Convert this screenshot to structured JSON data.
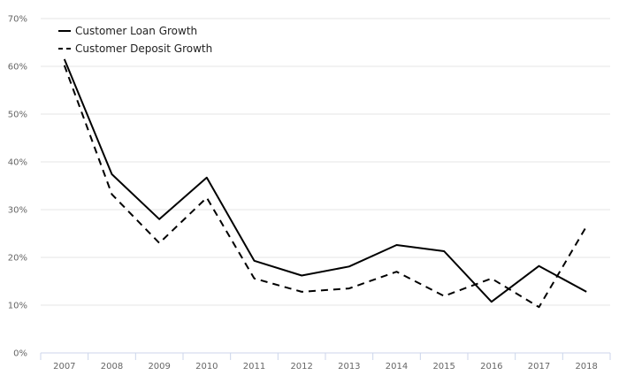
{
  "chart_data": {
    "type": "line",
    "title": "",
    "xlabel": "",
    "ylabel": "",
    "x": [
      "2007",
      "2008",
      "2009",
      "2010",
      "2011",
      "2012",
      "2013",
      "2014",
      "2015",
      "2016",
      "2017",
      "2018"
    ],
    "y_ticks": [
      "0%",
      "10%",
      "20%",
      "30%",
      "40%",
      "50%",
      "60%",
      "70%"
    ],
    "ylim": [
      0,
      70
    ],
    "grid": true,
    "legend_position": "top-left",
    "series": [
      {
        "name": "Customer Loan Growth",
        "style": "solid",
        "color": "#000000",
        "values": [
          61.5,
          37.4,
          28.0,
          36.7,
          19.3,
          16.2,
          18.1,
          22.6,
          21.3,
          10.7,
          18.2,
          12.8
        ]
      },
      {
        "name": "Customer Deposit Growth",
        "style": "dashed",
        "color": "#000000",
        "values": [
          60.2,
          33.2,
          23.0,
          32.5,
          15.6,
          12.8,
          13.5,
          17.0,
          11.9,
          15.6,
          9.6,
          26.5
        ]
      }
    ]
  }
}
